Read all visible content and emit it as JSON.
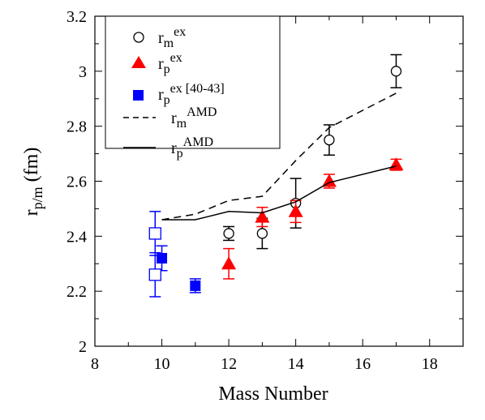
{
  "chart_data": {
    "type": "scatter",
    "xlabel": "Mass Number",
    "ylabel": "r",
    "ylabel_sub": "p/m",
    "ylabel_unit": " (fm)",
    "xlim": [
      8,
      19
    ],
    "ylim": [
      2,
      3.2
    ],
    "x_ticks": [
      8,
      10,
      12,
      14,
      16,
      18
    ],
    "y_ticks": [
      2,
      2.2,
      2.4,
      2.6,
      2.8,
      3,
      3.2
    ],
    "y_tick_labels": [
      "2",
      "2.2",
      "2.4",
      "2.6",
      "2.8",
      "3",
      "3.2"
    ],
    "grid": false,
    "legend_position": "top-left",
    "colors": {
      "rp_ex": "#ff0000",
      "rp_ex_ref": "#0000ff",
      "line": "#000000"
    },
    "series": [
      {
        "key": "rm_ex",
        "label_main": "r",
        "label_sub": "m",
        "label_sup": "ex",
        "marker": "open-circle",
        "color": "#000000",
        "x": [
          12,
          13,
          14,
          15,
          17
        ],
        "y": [
          2.41,
          2.41,
          2.52,
          2.75,
          3.0
        ],
        "err": [
          0.025,
          0.055,
          0.09,
          0.055,
          0.06
        ]
      },
      {
        "key": "rp_ex",
        "label_main": "r",
        "label_sub": "p",
        "label_sup": "ex",
        "marker": "filled-triangle",
        "color": "#ff0000",
        "x": [
          12,
          13,
          14,
          15,
          17
        ],
        "y": [
          2.3,
          2.47,
          2.49,
          2.6,
          2.66
        ],
        "err": [
          0.055,
          0.035,
          0.04,
          0.025,
          0.02
        ]
      },
      {
        "key": "rp_ex_ref",
        "label_main": "r",
        "label_sub": "p",
        "label_sup": "ex [40-43]",
        "marker": "filled-square",
        "color": "#0000ff",
        "x": [
          10,
          11
        ],
        "y": [
          2.32,
          2.22
        ],
        "err": [
          0.045,
          0.025
        ]
      },
      {
        "key": "rp_ex_ref_open",
        "marker": "open-square",
        "color": "#0000ff",
        "x": [
          9.8,
          9.8
        ],
        "y": [
          2.41,
          2.26
        ],
        "err": [
          0.08,
          0.08
        ]
      },
      {
        "key": "rm_amd",
        "label_main": "r",
        "label_sub": "m",
        "label_sup": "AMD",
        "marker": "none",
        "line": "dashed",
        "color": "#000000",
        "x": [
          10,
          11,
          12,
          13,
          14,
          15,
          17
        ],
        "y": [
          2.46,
          2.48,
          2.53,
          2.545,
          2.675,
          2.795,
          2.92
        ]
      },
      {
        "key": "rp_amd",
        "label_main": "r",
        "label_sub": "p",
        "label_sup": "AMD",
        "marker": "none",
        "line": "solid",
        "color": "#000000",
        "x": [
          10,
          11,
          12,
          13,
          14,
          15,
          17
        ],
        "y": [
          2.46,
          2.46,
          2.49,
          2.485,
          2.525,
          2.595,
          2.655
        ]
      }
    ]
  }
}
